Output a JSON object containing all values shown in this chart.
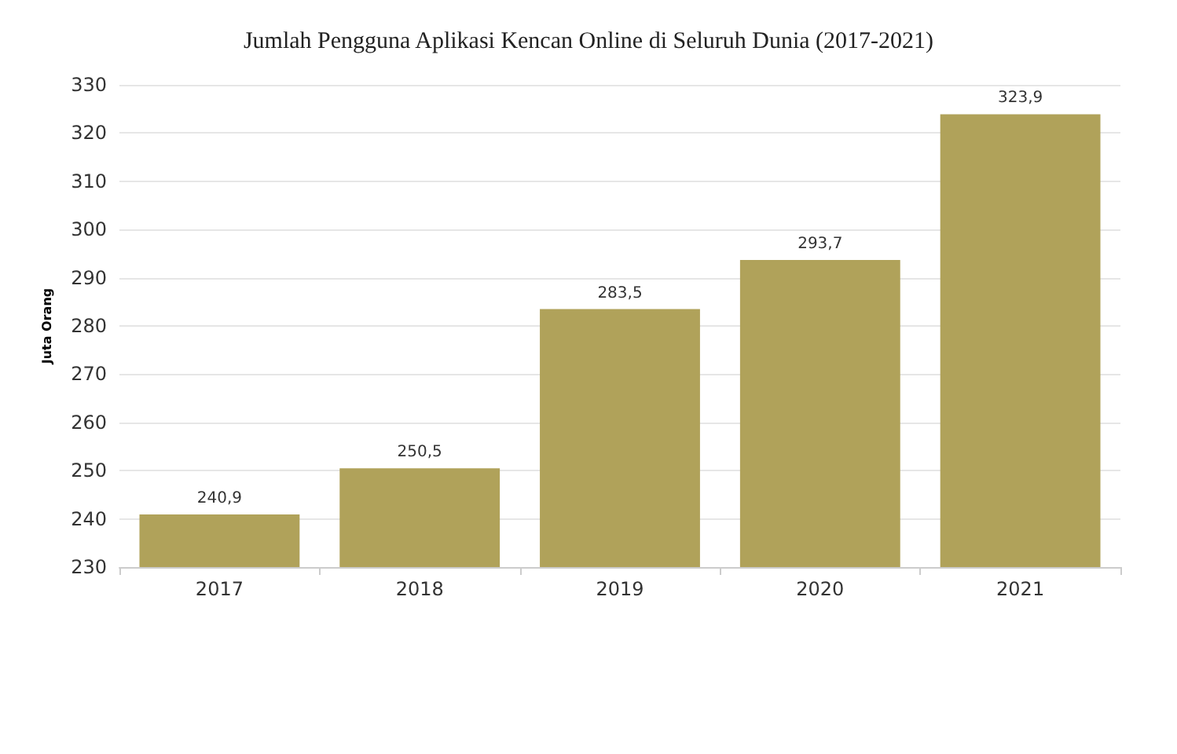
{
  "chart_data": {
    "type": "bar",
    "title": "Jumlah Pengguna Aplikasi Kencan Online di Seluruh Dunia (2017-2021)",
    "ylabel": "Juta Orang",
    "categories": [
      "2017",
      "2018",
      "2019",
      "2020",
      "2021"
    ],
    "values": [
      240.9,
      250.5,
      283.5,
      293.7,
      323.9
    ],
    "value_labels": [
      "240,9",
      "250,5",
      "283,5",
      "293,7",
      "323,9"
    ],
    "color": "#b0a25a",
    "ylim": [
      230,
      330
    ],
    "yticks": [
      230,
      240,
      250,
      260,
      270,
      280,
      290,
      300,
      310,
      320,
      330
    ],
    "grid": "y"
  }
}
